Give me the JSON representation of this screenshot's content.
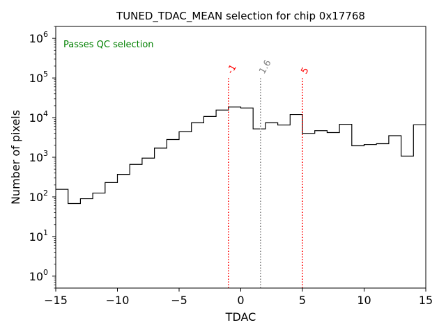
{
  "chart_data": {
    "type": "histogram",
    "title": "TUNED_TDAC_MEAN selection for chip 0x17768",
    "xlabel": "TDAC",
    "ylabel": "Number of pixels",
    "xlim": [
      -15,
      15
    ],
    "ylim": [
      0.5,
      2000000
    ],
    "yscale": "log",
    "x_ticks": [
      {
        "value": -15,
        "label": "−15"
      },
      {
        "value": -10,
        "label": "−10"
      },
      {
        "value": -5,
        "label": "−5"
      },
      {
        "value": 0,
        "label": "0"
      },
      {
        "value": 5,
        "label": "5"
      },
      {
        "value": 10,
        "label": "10"
      },
      {
        "value": 15,
        "label": "15"
      }
    ],
    "y_ticks": [
      {
        "value": 1,
        "base": "10",
        "exp": "0"
      },
      {
        "value": 10,
        "base": "10",
        "exp": "1"
      },
      {
        "value": 100,
        "base": "10",
        "exp": "2"
      },
      {
        "value": 1000,
        "base": "10",
        "exp": "3"
      },
      {
        "value": 10000,
        "base": "10",
        "exp": "4"
      },
      {
        "value": 100000,
        "base": "10",
        "exp": "5"
      },
      {
        "value": 1000000,
        "base": "10",
        "exp": "6"
      }
    ],
    "bin_edges": [
      -15,
      -14,
      -13,
      -12,
      -11,
      -10,
      -9,
      -8,
      -7,
      -6,
      -5,
      -4,
      -3,
      -2,
      -1,
      0,
      1,
      2,
      3,
      4,
      5,
      6,
      7,
      8,
      9,
      10,
      11,
      12,
      13,
      14,
      15
    ],
    "counts": [
      155,
      68,
      90,
      125,
      230,
      370,
      660,
      950,
      1700,
      2800,
      4400,
      7400,
      10700,
      15500,
      18500,
      17500,
      5200,
      7400,
      6500,
      12000,
      4000,
      4700,
      4200,
      6800,
      1950,
      2100,
      2200,
      3500,
      1070,
      6600
    ],
    "color": "#000000",
    "annotation": {
      "text": "Passes QC selection",
      "color": "#008000"
    },
    "vlines": [
      {
        "x": -1,
        "label": "-1",
        "color": "#ff0000",
        "style": "dotted",
        "top": 100000
      },
      {
        "x": 1.6,
        "label": "1.6",
        "color": "#808080",
        "style": "dotted",
        "top": 100000
      },
      {
        "x": 5,
        "label": "5",
        "color": "#ff0000",
        "style": "dotted",
        "top": 100000
      }
    ]
  }
}
